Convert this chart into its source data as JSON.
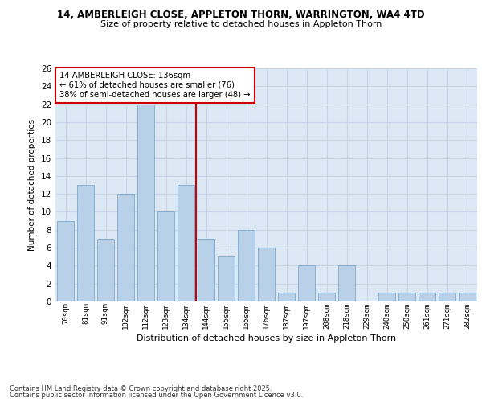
{
  "title1": "14, AMBERLEIGH CLOSE, APPLETON THORN, WARRINGTON, WA4 4TD",
  "title2": "Size of property relative to detached houses in Appleton Thorn",
  "xlabel": "Distribution of detached houses by size in Appleton Thorn",
  "ylabel": "Number of detached properties",
  "categories": [
    "70sqm",
    "81sqm",
    "91sqm",
    "102sqm",
    "112sqm",
    "123sqm",
    "134sqm",
    "144sqm",
    "155sqm",
    "165sqm",
    "176sqm",
    "187sqm",
    "197sqm",
    "208sqm",
    "218sqm",
    "229sqm",
    "240sqm",
    "250sqm",
    "261sqm",
    "271sqm",
    "282sqm"
  ],
  "values": [
    9,
    13,
    7,
    12,
    22,
    10,
    13,
    7,
    5,
    8,
    6,
    1,
    4,
    1,
    4,
    0,
    1,
    1,
    1,
    1,
    1
  ],
  "bar_color": "#b8d0e8",
  "bar_edge_color": "#7aaad0",
  "vline_x": 6.5,
  "vline_color": "#cc0000",
  "annotation_text": "14 AMBERLEIGH CLOSE: 136sqm\n← 61% of detached houses are smaller (76)\n38% of semi-detached houses are larger (48) →",
  "annotation_box_color": "#ffffff",
  "annotation_box_edge": "#cc0000",
  "ylim": [
    0,
    26
  ],
  "yticks": [
    0,
    2,
    4,
    6,
    8,
    10,
    12,
    14,
    16,
    18,
    20,
    22,
    24,
    26
  ],
  "grid_color": "#c8d4e8",
  "bg_color": "#dde8f5",
  "footer1": "Contains HM Land Registry data © Crown copyright and database right 2025.",
  "footer2": "Contains public sector information licensed under the Open Government Licence v3.0."
}
